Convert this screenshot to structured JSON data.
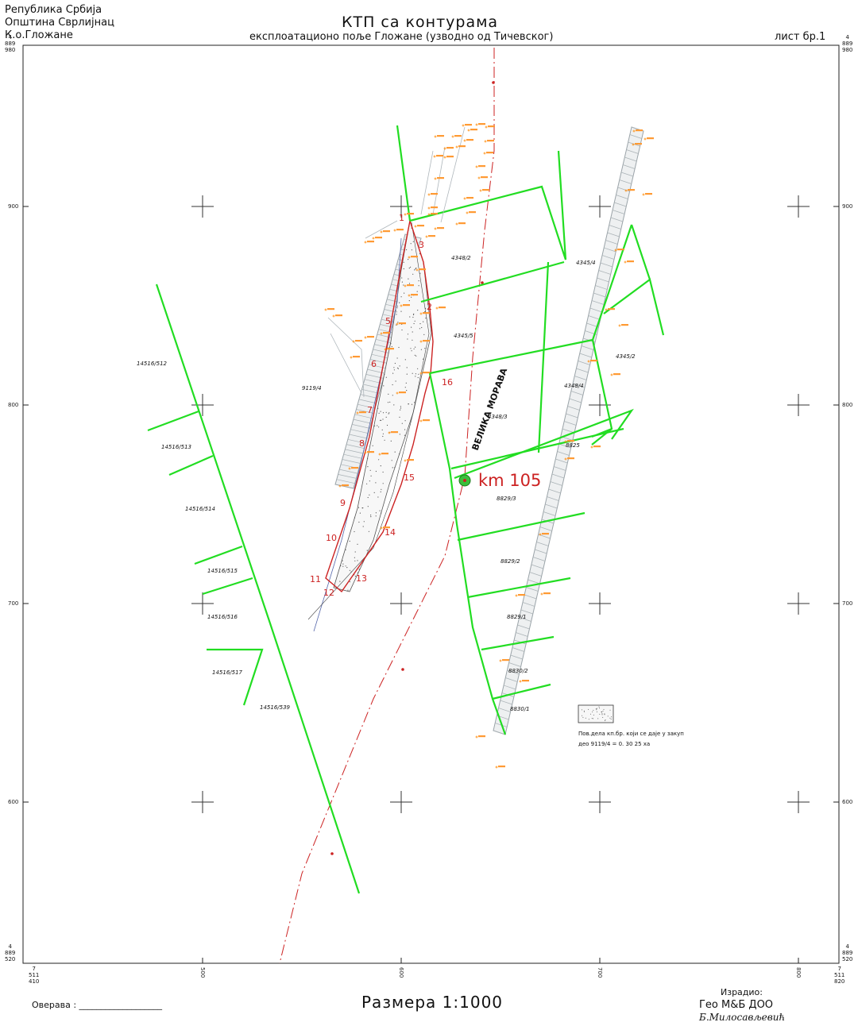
{
  "header": {
    "line1": "Републикa Србија",
    "line2": "Општина Сврлијнац",
    "line3": "К.о.Гложане",
    "title": "КТП са контурама",
    "subtitle": "експлоатационо поље Гложане (узводно од Тичевског)",
    "sheet": "лист бр.1"
  },
  "frame": {
    "left_top_coord": "4\n889\n980",
    "right_top_coord": "4\n889\n980",
    "left_bottom_coord": "4\n889\n520",
    "right_bottom_coord": "4\n889\n520",
    "bottom_left_coord": "7\n511\n410",
    "bottom_right_coord": "7\n511\n820",
    "y_ticks": [
      "900",
      "800",
      "700",
      "600"
    ],
    "x_ticks": [
      "500",
      "600",
      "700",
      "800"
    ]
  },
  "map": {
    "river_label": "ВЕЛИКА МОРАВА",
    "km_label": "km 105",
    "parcels": [
      "4348/2",
      "4345/4",
      "4345/5",
      "4345/2",
      "4348/4",
      "4348/3",
      "9119/4",
      "14516/512",
      "14516/513",
      "14516/514",
      "14516/515",
      "14516/516",
      "14516/517",
      "14516/539",
      "8829/3",
      "8829/2",
      "8829/1",
      "8830/2",
      "8830/1",
      "8825"
    ],
    "boundary_points": [
      "1",
      "2",
      "3",
      "5",
      "6",
      "7",
      "8",
      "9",
      "10",
      "11",
      "12",
      "13",
      "14",
      "15",
      "16"
    ],
    "legend_line1": "Пов.дела кп.бр. који се даје у закуп",
    "legend_line2": "део 9119/4 = 0. 30 25 ха",
    "colors": {
      "parcel": "#22dd22",
      "boundary": "#cc2222",
      "axis": "#cc2222",
      "elevation": "#ff8800",
      "hatch": "#9aa3a8"
    }
  },
  "footer": {
    "check": "Оверава : ___________________",
    "scale": "Размера 1:1000",
    "made_by_label": "Израдио:",
    "company": "Гео М&Б ДОО",
    "signature": "Б.Милосављевић"
  }
}
